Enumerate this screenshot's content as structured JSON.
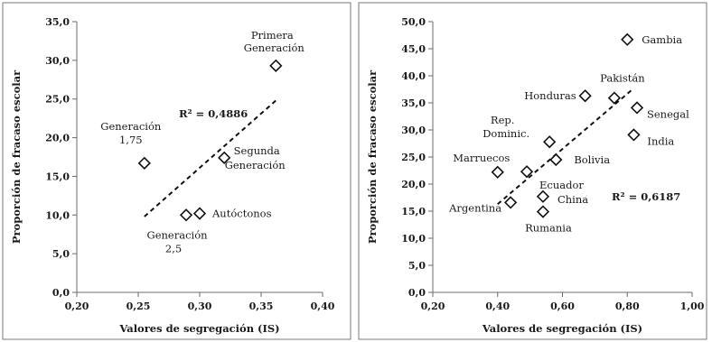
{
  "chart_data": [
    {
      "type": "scatter",
      "title": "",
      "xlabel": "Valores de segregación (IS)",
      "ylabel": "Proporción de fracaso escolar",
      "xlim": [
        0.2,
        0.4
      ],
      "ylim": [
        0,
        35
      ],
      "xticks": [
        0.2,
        0.25,
        0.3,
        0.35,
        0.4
      ],
      "xtick_labels": [
        "0,20",
        "0,25",
        "0,30",
        "0,35",
        "0,40"
      ],
      "yticks": [
        0,
        5,
        10,
        15,
        20,
        25,
        30,
        35
      ],
      "ytick_labels": [
        "0,0",
        "5,0",
        "10,0",
        "15,0",
        "20,0",
        "25,0",
        "30,0",
        "35,0"
      ],
      "marker": "diamond",
      "points": [
        {
          "x": 0.362,
          "y": 29.3,
          "label": "Primera Generación"
        },
        {
          "x": 0.255,
          "y": 16.7,
          "label": "Generación 1,75"
        },
        {
          "x": 0.32,
          "y": 17.4,
          "label": "Segunda Generación"
        },
        {
          "x": 0.289,
          "y": 10.0,
          "label": "Generación 2,5"
        },
        {
          "x": 0.3,
          "y": 10.2,
          "label": "Autóctonos"
        }
      ],
      "trendline": {
        "style": "dashed",
        "x": [
          0.255,
          0.362
        ],
        "y": [
          9.8,
          24.8
        ]
      },
      "annotations": [
        {
          "text": "R² = 0,4886"
        }
      ],
      "grid": false
    },
    {
      "type": "scatter",
      "title": "",
      "xlabel": "Valores de segregación (IS)",
      "ylabel": "Proporción de fracaso escolar",
      "xlim": [
        0.2,
        1.0
      ],
      "ylim": [
        0,
        50
      ],
      "xticks": [
        0.2,
        0.4,
        0.6,
        0.8,
        1.0
      ],
      "xtick_labels": [
        "0,20",
        "0,40",
        "0,60",
        "0,80",
        "1,00"
      ],
      "yticks": [
        0,
        5,
        10,
        15,
        20,
        25,
        30,
        35,
        40,
        45,
        50
      ],
      "ytick_labels": [
        "0,0",
        "5,0",
        "10,0",
        "15,0",
        "20,0",
        "25,0",
        "30,0",
        "35,0",
        "40,0",
        "45,0",
        "50,0"
      ],
      "marker": "diamond",
      "points": [
        {
          "x": 0.8,
          "y": 46.7,
          "label": "Gambia"
        },
        {
          "x": 0.76,
          "y": 35.9,
          "label": "Pakistán"
        },
        {
          "x": 0.67,
          "y": 36.3,
          "label": "Honduras"
        },
        {
          "x": 0.83,
          "y": 34.1,
          "label": "Senegal"
        },
        {
          "x": 0.82,
          "y": 29.1,
          "label": "India"
        },
        {
          "x": 0.56,
          "y": 27.8,
          "label": "Rep. Dominic."
        },
        {
          "x": 0.58,
          "y": 24.5,
          "label": "Bolivia"
        },
        {
          "x": 0.4,
          "y": 22.2,
          "label": "Marruecos"
        },
        {
          "x": 0.49,
          "y": 22.3,
          "label": "Ecuador"
        },
        {
          "x": 0.54,
          "y": 17.7,
          "label": "China"
        },
        {
          "x": 0.44,
          "y": 16.6,
          "label": "Argentina"
        },
        {
          "x": 0.54,
          "y": 14.9,
          "label": "Rumania"
        }
      ],
      "trendline": {
        "style": "dashed",
        "x": [
          0.4,
          0.82
        ],
        "y": [
          16.3,
          37.7
        ]
      },
      "annotations": [
        {
          "text": "R² = 0,6187"
        }
      ],
      "grid": false
    }
  ]
}
